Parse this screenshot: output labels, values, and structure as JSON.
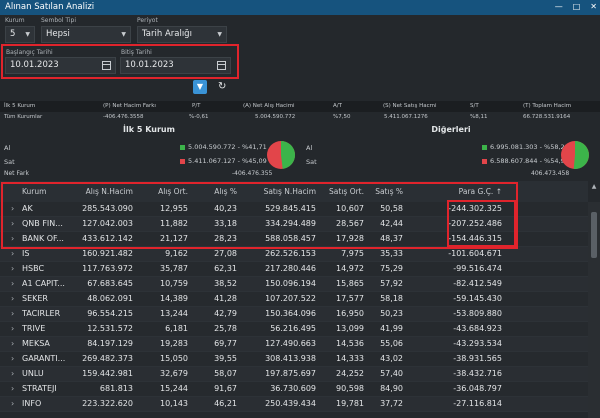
{
  "window": {
    "title": "Alınan Satılan Analizi"
  },
  "filters": {
    "kurum_label": "Kurum",
    "kurum_value": "5",
    "sembol_label": "Sembol Tipi",
    "sembol_value": "Hepsi",
    "periyot_label": "Periyot",
    "periyot_value": "Tarih Aralığı",
    "start_label": "Başlangıç Tarihi",
    "start_value": "10.01.2023",
    "end_label": "Bitiş Tarihi",
    "end_value": "10.01.2023"
  },
  "summary": {
    "headers": [
      "İlk 5 Kurum",
      "(P) Net Hacim Farkı",
      "P/T",
      "(A) Net Alış Hacimi",
      "A/T",
      "(S) Net Satış Hacmi",
      "S/T",
      "(T) Toplam Hacim"
    ],
    "values": [
      "Tüm Kurumlar",
      "-406.476.3558",
      "%-0,61",
      "5.004.590.772",
      "%7,50",
      "5.411.067.1276",
      "%8,11",
      "66.728.531.9164"
    ]
  },
  "panels": {
    "left": {
      "title": "İlk 5 Kurum",
      "al_label": "Al",
      "al_value": "5.004.590.772 - %41,71",
      "sat_label": "Sat",
      "sat_value": "5.411.067.127 - %45,09",
      "net_label": "Net Fark",
      "net_value": "-406.476.355",
      "al_pct": 41.71,
      "sat_pct": 45.09
    },
    "right": {
      "title": "Diğerleri",
      "al_label": "Al",
      "al_value": "6.995.081.303 - %58,29",
      "sat_label": "Sat",
      "sat_value": "6.588.607.844 - %54,91",
      "net_value": "406.473.458",
      "al_pct": 58.29,
      "sat_pct": 54.91
    },
    "colors": {
      "green": "#3cb44a",
      "red": "#e2454a"
    }
  },
  "grid": {
    "columns": [
      "Kurum",
      "Alış N.Hacim",
      "Alış Ort.",
      "Alış %",
      "Satış N.Hacim",
      "Satış Ort.",
      "Satış %",
      "Para G.Ç. ↑"
    ],
    "rows": [
      [
        "AK",
        "285.543.090",
        "12,955",
        "40,23",
        "529.845.415",
        "10,607",
        "50,58",
        "-244.302.325"
      ],
      [
        "QNB FIN...",
        "127.042.003",
        "11,882",
        "33,18",
        "334.294.489",
        "28,567",
        "42,44",
        "-207.252.486"
      ],
      [
        "BANK OF...",
        "433.612.142",
        "21,127",
        "28,23",
        "588.058.457",
        "17,928",
        "48,37",
        "-154.446.315"
      ],
      [
        "IS",
        "160.921.482",
        "9,162",
        "27,08",
        "262.526.153",
        "7,975",
        "35,33",
        "-101.604.671"
      ],
      [
        "HSBC",
        "117.763.972",
        "35,787",
        "62,31",
        "217.280.446",
        "14,972",
        "75,29",
        "-99.516.474"
      ],
      [
        "A1 CAPIT...",
        "67.683.645",
        "10,759",
        "38,52",
        "150.096.194",
        "15,865",
        "57,92",
        "-82.412.549"
      ],
      [
        "SEKER",
        "48.062.091",
        "14,389",
        "41,28",
        "107.207.522",
        "17,577",
        "58,18",
        "-59.145.430"
      ],
      [
        "TACIRLER",
        "96.554.215",
        "13,244",
        "42,79",
        "150.364.096",
        "16,950",
        "50,23",
        "-53.809.880"
      ],
      [
        "TRIVE",
        "12.531.572",
        "6,181",
        "25,78",
        "56.216.495",
        "13,099",
        "41,99",
        "-43.684.923"
      ],
      [
        "MEKSA",
        "84.197.129",
        "19,283",
        "69,77",
        "127.490.663",
        "14,536",
        "55,06",
        "-43.293.534"
      ],
      [
        "GARANTI...",
        "269.482.373",
        "15,050",
        "39,55",
        "308.413.938",
        "14,333",
        "43,02",
        "-38.931.565"
      ],
      [
        "UNLU",
        "159.442.981",
        "32,679",
        "58,07",
        "197.875.697",
        "24,252",
        "57,40",
        "-38.432.716"
      ],
      [
        "STRATEJI",
        "681.813",
        "15,244",
        "91,67",
        "36.730.609",
        "90,598",
        "84,90",
        "-36.048.797"
      ],
      [
        "INFO",
        "223.322.620",
        "10,143",
        "46,21",
        "250.439.434",
        "19,781",
        "37,72",
        "-27.116.814"
      ]
    ]
  }
}
